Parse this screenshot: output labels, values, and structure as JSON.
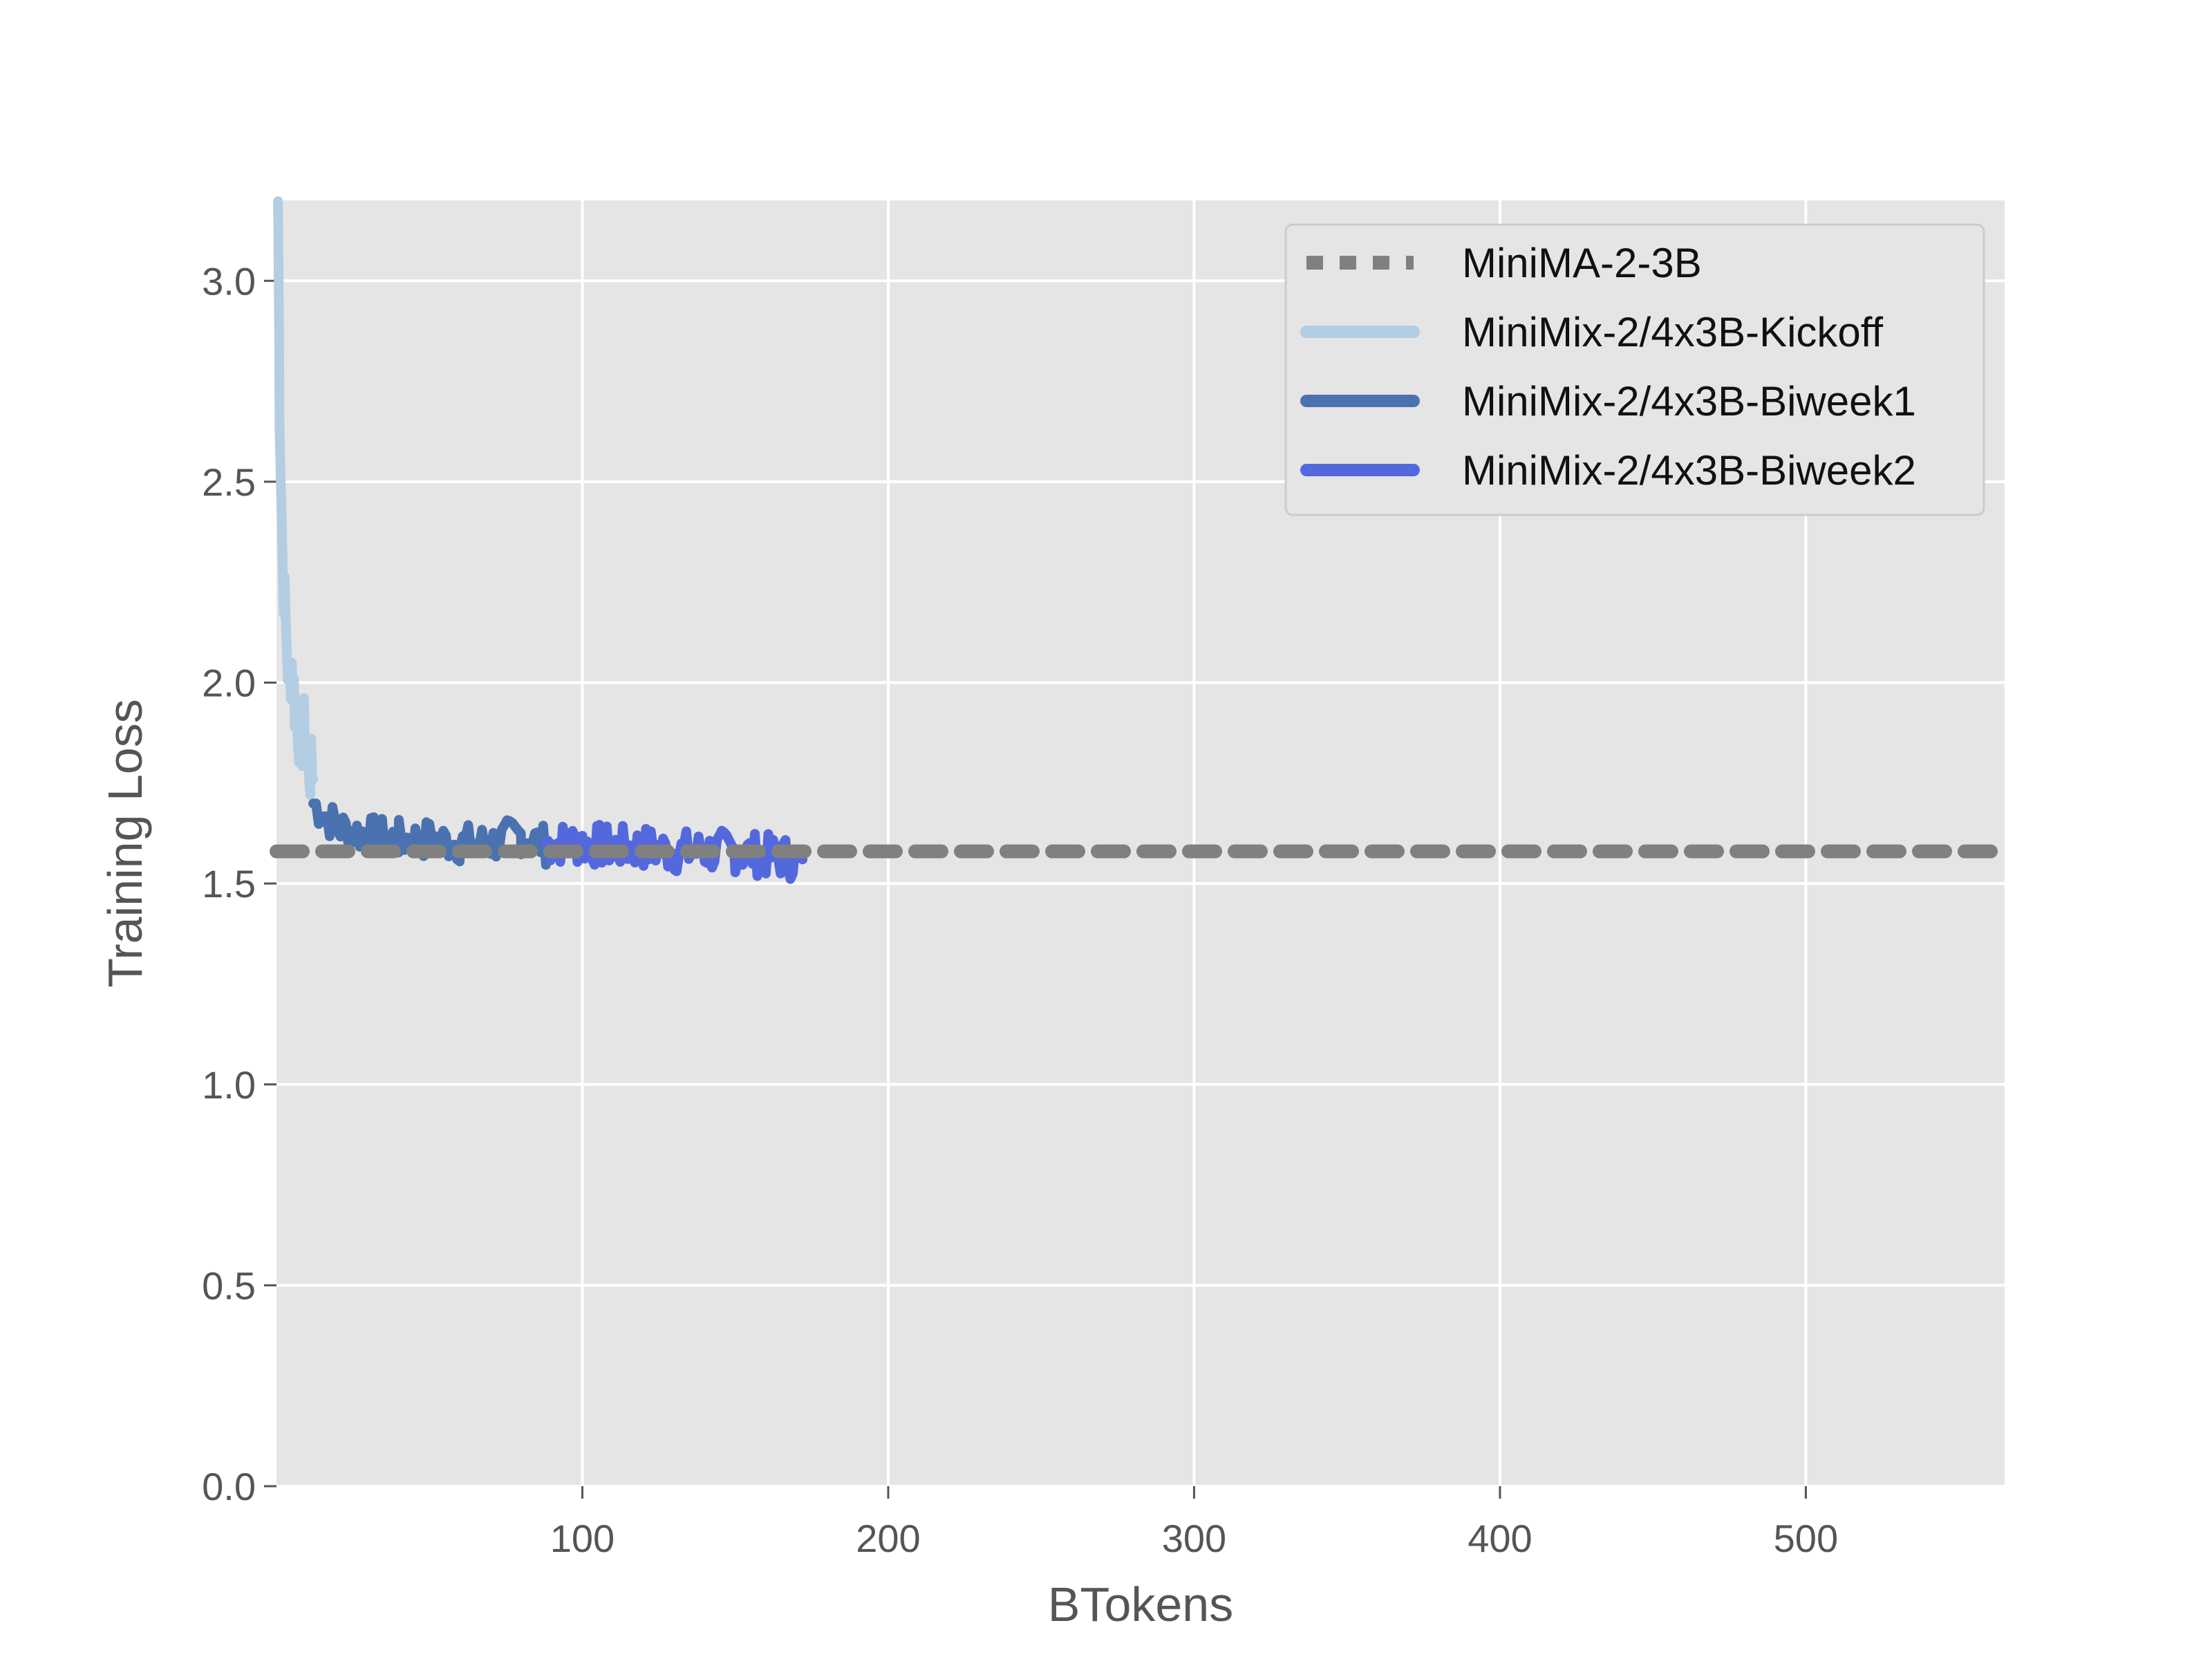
{
  "chart_data": {
    "type": "line",
    "title": "",
    "xlabel": "BTokens",
    "ylabel": "Training Loss",
    "xlim": [
      0,
      565
    ],
    "ylim": [
      0,
      3.2
    ],
    "xticks": [
      100,
      200,
      300,
      400,
      500
    ],
    "xtick_labels": [
      "100",
      "200",
      "300",
      "400",
      "500"
    ],
    "yticks": [
      0,
      0.5,
      1.0,
      1.5,
      2.0,
      2.5,
      3.0
    ],
    "ytick_labels": [
      "0.0",
      "0.5",
      "1.0",
      "1.5",
      "2.0",
      "2.5",
      "3.0"
    ],
    "grid": true,
    "background": "#e5e5e5",
    "legend_position": "top-right",
    "series": [
      {
        "name": "MiniMA-2-3B",
        "style": "dotted",
        "color": "#808080",
        "x": [
          0,
          565
        ],
        "y": [
          1.58,
          1.58
        ]
      },
      {
        "name": "MiniMix-2/4x3B-Kickoff",
        "style": "solid",
        "color": "#b3cde3",
        "x": [
          0.5,
          1,
          2,
          3,
          4,
          5,
          6,
          7,
          8,
          9,
          10,
          11,
          12
        ],
        "y": [
          3.2,
          2.7,
          2.3,
          2.15,
          2.0,
          2.05,
          1.95,
          1.9,
          1.85,
          1.88,
          1.82,
          1.78,
          1.76
        ]
      },
      {
        "name": "MiniMix-2/4x3B-Biweek1",
        "style": "solid",
        "color": "#4a72b0",
        "x": [
          12,
          20,
          30,
          40,
          50,
          60,
          70,
          80,
          90
        ],
        "y": [
          1.7,
          1.64,
          1.62,
          1.61,
          1.61,
          1.6,
          1.6,
          1.62,
          1.59
        ]
      },
      {
        "name": "MiniMix-2/4x3B-Biweek2",
        "style": "solid",
        "color": "#5468de",
        "x": [
          88,
          100,
          110,
          120,
          130,
          140,
          150,
          160,
          172
        ],
        "y": [
          1.6,
          1.6,
          1.59,
          1.59,
          1.58,
          1.58,
          1.58,
          1.57,
          1.56
        ]
      }
    ]
  }
}
